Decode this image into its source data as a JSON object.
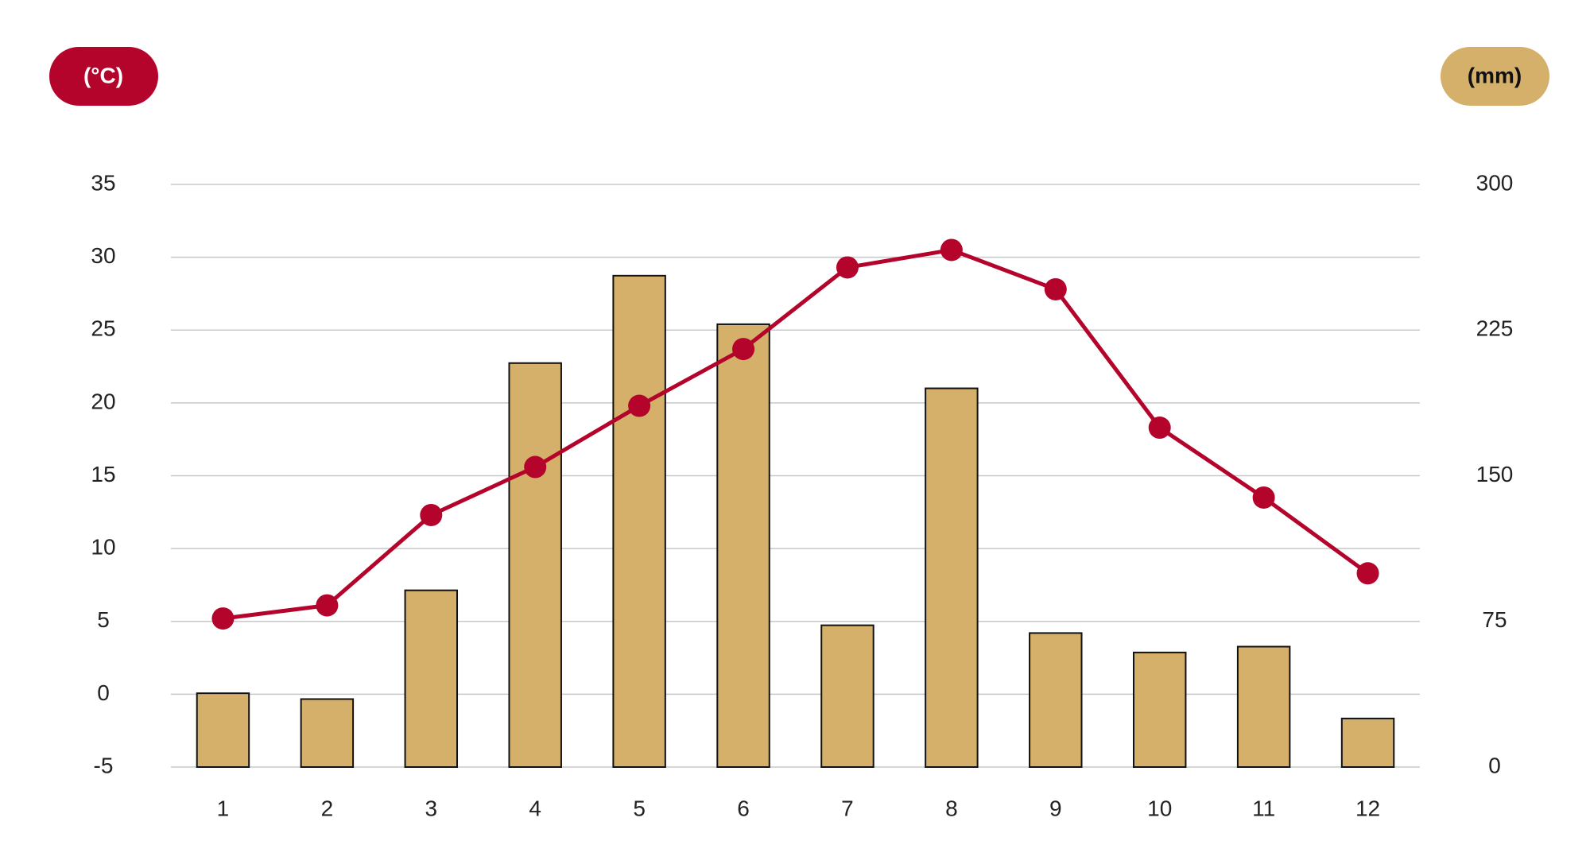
{
  "chart_data": {
    "type": "combo",
    "y_label": "(°C)",
    "y2_label": "(mm)",
    "categories": [
      "1",
      "2",
      "3",
      "4",
      "5",
      "6",
      "7",
      "8",
      "9",
      "10",
      "11",
      "12"
    ],
    "series": [
      {
        "type": "bar",
        "axis": "y2",
        "color": "#d4b06a",
        "values": [
          38,
          35,
          91,
          208,
          253,
          228,
          73,
          195,
          69,
          59,
          62,
          25
        ]
      },
      {
        "type": "line",
        "axis": "y",
        "color": "#b5042c",
        "values": [
          5.2,
          6.1,
          12.3,
          15.6,
          19.8,
          23.7,
          29.3,
          30.5,
          27.8,
          18.3,
          13.5,
          8.3
        ]
      }
    ],
    "ylim": [
      -5,
      35
    ],
    "yticks": [
      -5,
      0,
      5,
      10,
      15,
      20,
      25,
      30,
      35
    ],
    "y2lim": [
      0,
      300
    ],
    "y2ticks": [
      0,
      75,
      150,
      225,
      300
    ],
    "grid": true
  }
}
